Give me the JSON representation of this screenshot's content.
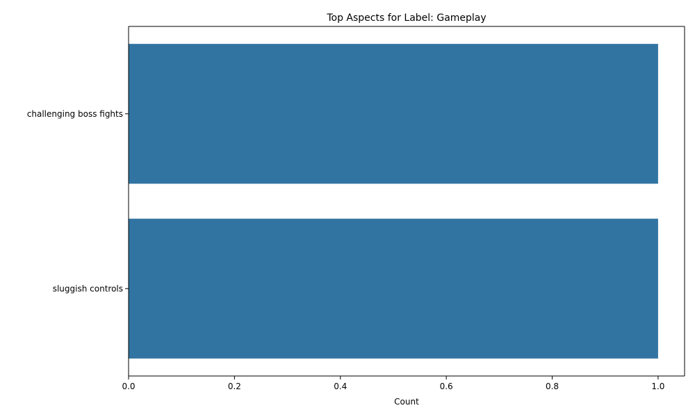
{
  "chart_data": {
    "type": "bar",
    "orientation": "horizontal",
    "title": "Top Aspects for Label: Gameplay",
    "xlabel": "Count",
    "ylabel": "",
    "categories": [
      "challenging boss fights",
      "sluggish controls"
    ],
    "values": [
      1,
      1
    ],
    "xlim": [
      0,
      1.05
    ],
    "xticks": [
      "0.0",
      "0.2",
      "0.4",
      "0.6",
      "0.8",
      "1.0"
    ],
    "xtick_values": [
      0,
      0.2,
      0.4,
      0.6,
      0.8,
      1.0
    ],
    "grid": false,
    "legend": "none",
    "bar_color": "#3274a1"
  }
}
